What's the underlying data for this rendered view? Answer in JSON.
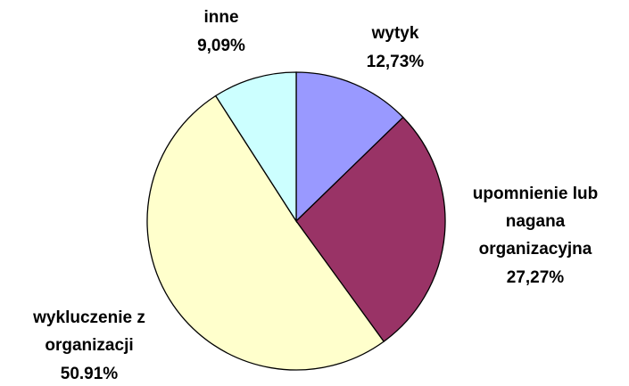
{
  "chart_data": {
    "type": "pie",
    "categories": [
      [
        "wytyk"
      ],
      [
        "upomnienie lub",
        "nagana",
        "organizacyjna"
      ],
      [
        "wykluczenie z",
        "organizacji"
      ],
      [
        "inne"
      ]
    ],
    "values": [
      12.73,
      27.27,
      50.91,
      9.09
    ],
    "value_labels": [
      "12,73%",
      "27,27%",
      "50.91%",
      "9,09%"
    ],
    "colors": [
      "#9999ff",
      "#993366",
      "#ffffcc",
      "#ccffff"
    ]
  }
}
